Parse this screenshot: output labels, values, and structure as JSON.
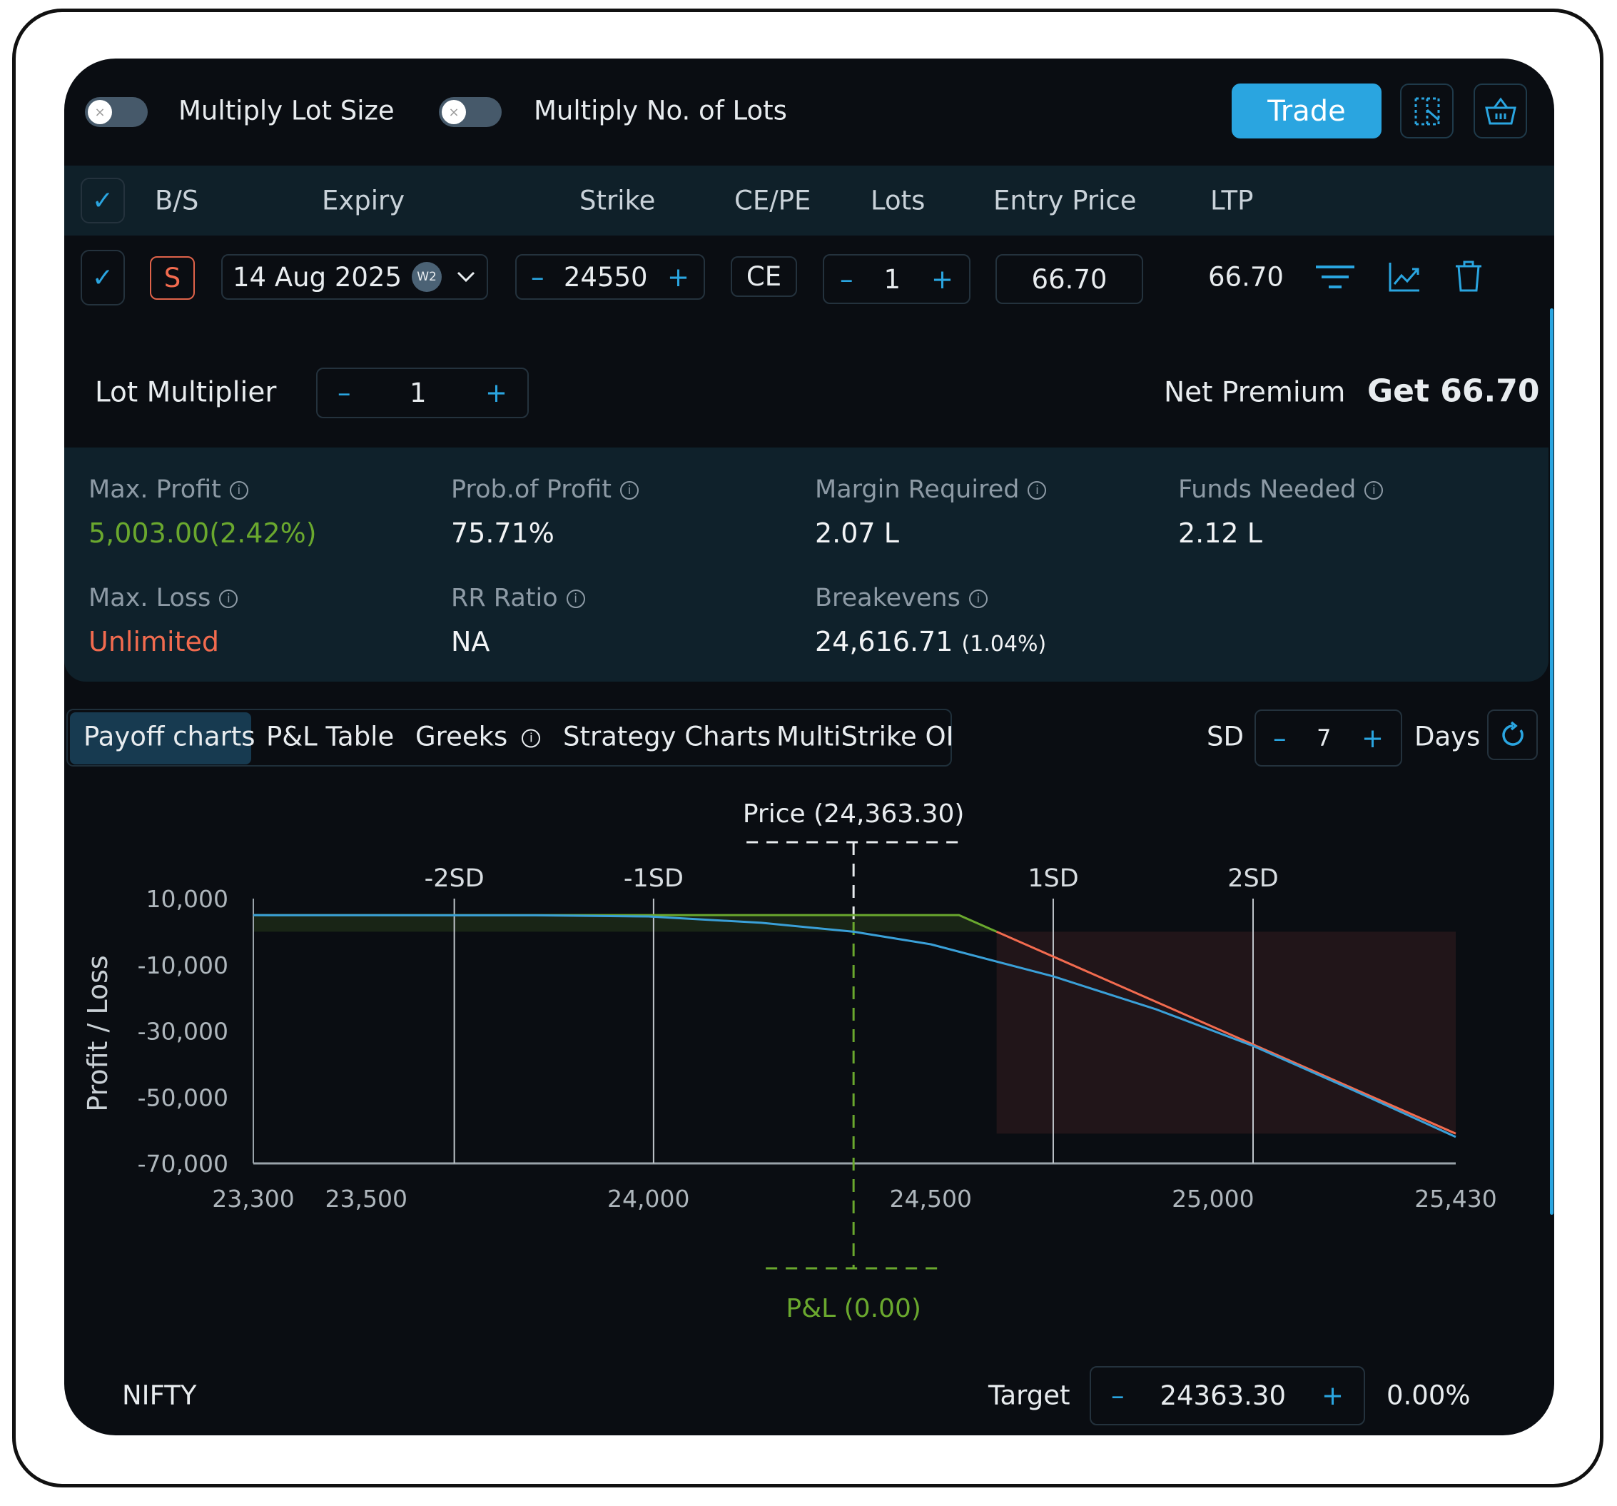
{
  "top_bar": {
    "toggle_lot_size_label": "Multiply Lot Size",
    "toggle_lots_label": "Multiply No. of Lots",
    "toggle_lot_size_on": false,
    "toggle_lots_on": false,
    "toggle_off_glyph": "×",
    "trade_label": "Trade",
    "icons": [
      "strategy-grid-icon",
      "basket-icon"
    ]
  },
  "table": {
    "headers": [
      "B/S",
      "Expiry",
      "Strike",
      "CE/PE",
      "Lots",
      "Entry Price",
      "LTP"
    ],
    "check_glyph": "✓",
    "row": {
      "bs": "S",
      "expiry": "14 Aug 2025",
      "expiry_badge": "W2",
      "strike": "24550",
      "type": "CE",
      "lots": "1",
      "entry_price": "66.70",
      "ltp": "66.70",
      "minus": "–",
      "plus": "+"
    }
  },
  "lot_multiplier": {
    "label": "Lot Multiplier",
    "value": "1"
  },
  "net_premium": {
    "label": "Net Premium",
    "value": "Get 66.70"
  },
  "stats": {
    "max_profit": {
      "label": "Max. Profit",
      "value": "5,003.00(2.42%)"
    },
    "prob_profit": {
      "label": "Prob.of Profit",
      "value": "75.71%"
    },
    "margin": {
      "label": "Margin Required",
      "value": "2.07 L"
    },
    "funds": {
      "label": "Funds Needed",
      "value": "2.12 L"
    },
    "max_loss": {
      "label": "Max. Loss",
      "value": "Unlimited"
    },
    "rr": {
      "label": "RR Ratio",
      "value": "NA"
    },
    "breakevens": {
      "label": "Breakevens",
      "value": "24,616.71",
      "pct": "(1.04%)"
    },
    "info_glyph": "i"
  },
  "tabs": [
    {
      "label": "Payoff charts",
      "active": true
    },
    {
      "label": "P&L Table"
    },
    {
      "label": "Greeks"
    },
    {
      "label": "Strategy Charts"
    },
    {
      "label": "MultiStrike OI"
    }
  ],
  "sd": {
    "label": "SD",
    "value": "7",
    "days_label": "Days"
  },
  "colors": {
    "accent": "#2aa5e0",
    "profit": "#6aa82e",
    "loss": "#f26b4f",
    "t0": "#3aa0d8"
  },
  "chart_data": {
    "type": "line",
    "ylabel": "Profit / Loss",
    "xlim": [
      23300,
      25430
    ],
    "ylim": [
      -70000,
      10000
    ],
    "xticks": [
      "23,300",
      "23,500",
      "24,000",
      "24,500",
      "25,000",
      "25,430"
    ],
    "xtick_values": [
      23300,
      23500,
      24000,
      24500,
      25000,
      25430
    ],
    "yticks": [
      "10,000",
      "-10,000",
      "-30,000",
      "-50,000",
      "-70,000"
    ],
    "ytick_values": [
      10000,
      -10000,
      -30000,
      -50000,
      -70000
    ],
    "sd_lines": [
      {
        "label": "-2SD",
        "x": 23656
      },
      {
        "label": "-1SD",
        "x": 24009
      },
      {
        "label": "1SD",
        "x": 24717
      },
      {
        "label": "2SD",
        "x": 25071
      }
    ],
    "price_marker": {
      "label": "Price (24,363.30)",
      "x": 24363.3
    },
    "pnl_marker": {
      "label": "P&L (0.00)"
    },
    "series": [
      {
        "id": "expiry",
        "points": [
          [
            23300,
            5003
          ],
          [
            24550,
            5003
          ],
          [
            24616.71,
            0
          ],
          [
            25430,
            -61000
          ]
        ]
      },
      {
        "id": "target_day",
        "points": [
          [
            23300,
            5003
          ],
          [
            23800,
            4950
          ],
          [
            24000,
            4600
          ],
          [
            24200,
            2700
          ],
          [
            24363.3,
            0
          ],
          [
            24500,
            -3800
          ],
          [
            24717,
            -13500
          ],
          [
            24900,
            -23500
          ],
          [
            25071,
            -34500
          ],
          [
            25250,
            -48000
          ],
          [
            25430,
            -62000
          ]
        ]
      }
    ],
    "grid": false
  },
  "footer": {
    "symbol": "NIFTY",
    "target_label": "Target",
    "target_value": "24363.30",
    "target_pct": "0.00%"
  }
}
